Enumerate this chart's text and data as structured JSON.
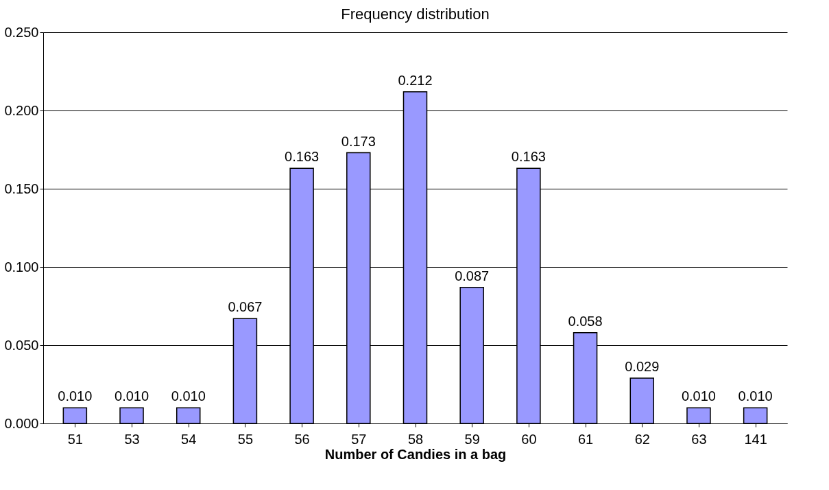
{
  "chart_data": {
    "type": "bar",
    "title": "Frequency distribution",
    "xlabel": "Number of Candies in a bag",
    "categories": [
      "51",
      "53",
      "54",
      "55",
      "56",
      "57",
      "58",
      "59",
      "60",
      "61",
      "62",
      "63",
      "141"
    ],
    "values": [
      0.01,
      0.01,
      0.01,
      0.067,
      0.163,
      0.173,
      0.212,
      0.087,
      0.163,
      0.058,
      0.029,
      0.01,
      0.01
    ],
    "value_labels": [
      "0.010",
      "0.010",
      "0.010",
      "0.067",
      "0.163",
      "0.173",
      "0.212",
      "0.087",
      "0.163",
      "0.058",
      "0.029",
      "0.010",
      "0.010"
    ],
    "color": "#9999ff",
    "ylim": [
      0,
      0.25
    ],
    "yticks": [
      {
        "value": 0,
        "label": "0.000"
      },
      {
        "value": 0.05,
        "label": "0.050"
      },
      {
        "value": 0.1,
        "label": "0.100"
      },
      {
        "value": 0.15,
        "label": "0.150"
      },
      {
        "value": 0.2,
        "label": "0.200"
      },
      {
        "value": 0.25,
        "label": "0.250"
      }
    ],
    "grid": "y"
  }
}
